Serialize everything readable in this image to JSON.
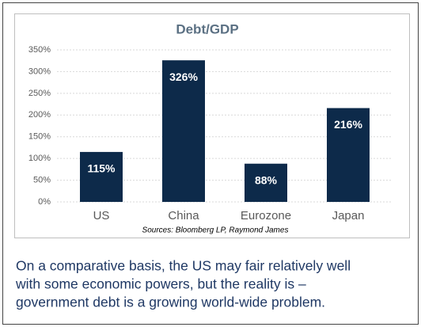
{
  "chart_data": {
    "type": "bar",
    "title": "Debt/GDP",
    "categories": [
      "US",
      "China",
      "Eurozone",
      "Japan"
    ],
    "values": [
      115,
      326,
      88,
      216
    ],
    "value_labels": [
      "115%",
      "326%",
      "88%",
      "216%"
    ],
    "color": "#0d2a4a",
    "ylim": [
      0,
      350
    ],
    "yticks": [
      {
        "value": 0,
        "label": "0%"
      },
      {
        "value": 50,
        "label": "50%"
      },
      {
        "value": 100,
        "label": "100%"
      },
      {
        "value": 150,
        "label": "150%"
      },
      {
        "value": 200,
        "label": "200%"
      },
      {
        "value": 250,
        "label": "250%"
      },
      {
        "value": 300,
        "label": "300%"
      },
      {
        "value": 350,
        "label": "350%"
      }
    ],
    "grid": true,
    "source": "Sources: Bloomberg LP, Raymond James"
  },
  "caption": [
    "On a comparative basis, the US may fair relatively well",
    "with some economic powers, but the reality is –",
    "government debt is a growing world-wide problem."
  ]
}
